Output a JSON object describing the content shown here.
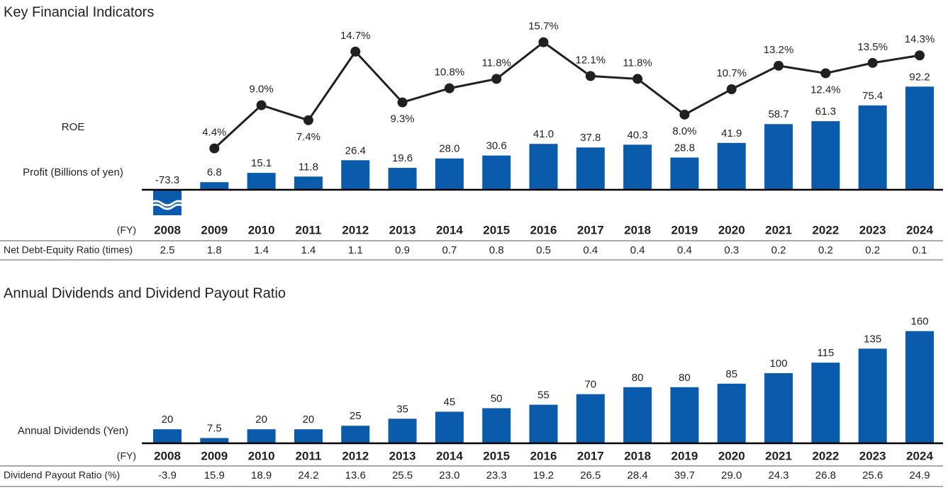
{
  "chart_data": [
    {
      "type": "combo",
      "title": "Key Financial Indicators",
      "xlabel": "(FY)",
      "categories": [
        "2008",
        "2009",
        "2010",
        "2011",
        "2012",
        "2013",
        "2014",
        "2015",
        "2016",
        "2017",
        "2018",
        "2019",
        "2020",
        "2021",
        "2022",
        "2023",
        "2024"
      ],
      "series": [
        {
          "name": "Profit (Billions of yen)",
          "type": "bar",
          "color": "#0a5bab",
          "values": [
            -73.3,
            6.8,
            15.1,
            11.8,
            26.4,
            19.6,
            28.0,
            30.6,
            41.0,
            37.8,
            40.3,
            28.8,
            41.9,
            58.7,
            61.3,
            75.4,
            92.2
          ],
          "value_labels": [
            "-73.3",
            "6.8",
            "15.1",
            "11.8",
            "26.4",
            "19.6",
            "28.0",
            "30.6",
            "41.0",
            "37.8",
            "40.3",
            "28.8",
            "41.9",
            "58.7",
            "61.3",
            "75.4",
            "92.2"
          ]
        },
        {
          "name": "ROE",
          "type": "line",
          "color": "#231f20",
          "values": [
            null,
            4.4,
            9.0,
            7.4,
            14.7,
            9.3,
            10.8,
            11.8,
            15.7,
            12.1,
            11.8,
            8.0,
            10.7,
            13.2,
            12.4,
            13.5,
            14.3
          ],
          "value_labels": [
            null,
            "4.4%",
            "9.0%",
            "7.4%",
            "14.7%",
            "9.3%",
            "10.8%",
            "11.8%",
            "15.7%",
            "12.1%",
            "11.8%",
            "8.0%",
            "10.7%",
            "13.2%",
            "12.4%",
            "13.5%",
            "14.3%"
          ]
        }
      ],
      "table_row": {
        "label": "Net Debt-Equity Ratio (times)",
        "values": [
          "2.5",
          "1.8",
          "1.4",
          "1.4",
          "1.1",
          "0.9",
          "0.7",
          "0.8",
          "0.5",
          "0.4",
          "0.4",
          "0.4",
          "0.3",
          "0.2",
          "0.2",
          "0.2",
          "0.1"
        ]
      }
    },
    {
      "type": "bar",
      "title": "Annual Dividends and Dividend Payout Ratio",
      "xlabel": "(FY)",
      "categories": [
        "2008",
        "2009",
        "2010",
        "2011",
        "2012",
        "2013",
        "2014",
        "2015",
        "2016",
        "2017",
        "2018",
        "2019",
        "2020",
        "2021",
        "2022",
        "2023",
        "2024"
      ],
      "series": [
        {
          "name": "Annual Dividends (Yen)",
          "type": "bar",
          "color": "#0a5bab",
          "values": [
            20,
            7.5,
            20,
            20,
            25,
            35,
            45,
            50,
            55,
            70,
            80,
            80,
            85,
            100,
            115,
            135,
            160
          ]
        }
      ],
      "table_row": {
        "label": "Dividend Payout Ratio (%)",
        "values": [
          "-3.9",
          "15.9",
          "18.9",
          "24.2",
          "13.6",
          "25.5",
          "23.0",
          "23.3",
          "19.2",
          "26.5",
          "28.4",
          "39.7",
          "29.0",
          "24.3",
          "26.8",
          "25.6",
          "24.9"
        ]
      }
    }
  ]
}
